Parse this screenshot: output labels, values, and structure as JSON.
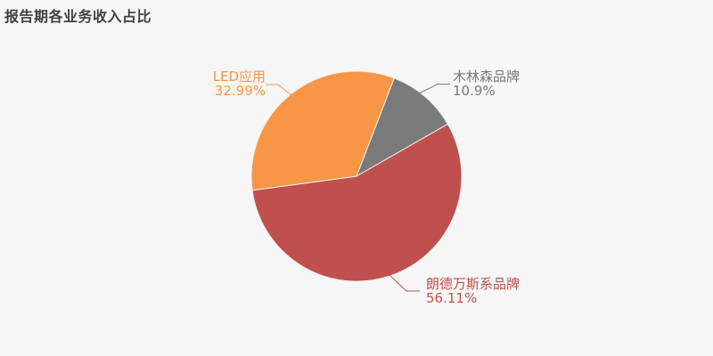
{
  "page": {
    "background_color": "#f6f6f6"
  },
  "chart_data": {
    "type": "pie",
    "title": "报告期各业务收入占比",
    "legend": "none",
    "labels_position": "outside-with-leader-lines",
    "center": [
      400,
      198
    ],
    "radius": 118,
    "start_angle_cw_from_top_deg": 21,
    "clockwise": true,
    "seam_color": "#f2f2f2",
    "slices": [
      {
        "label": "木林森品牌",
        "value": 10.9,
        "display": "10.9%",
        "color": "#7a7a7a"
      },
      {
        "label": "朗德万斯系品牌",
        "value": 56.11,
        "display": "56.11%",
        "color": "#C0504D"
      },
      {
        "label": "LED应用",
        "value": 32.99,
        "display": "32.99%",
        "color": "#F79646"
      }
    ]
  }
}
